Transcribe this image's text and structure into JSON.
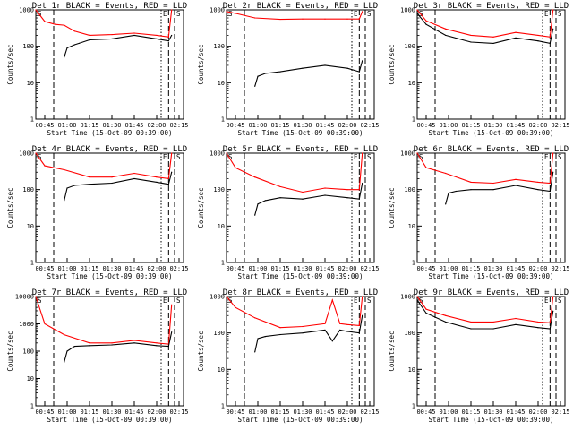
{
  "legend_text": "BLACK = Events, RED = LLD",
  "xlabel": "Start Time (15-Oct-09 00:39:00)",
  "ylabel": "Counts/sec",
  "x_ticks": [
    "00:45",
    "01:00",
    "01:15",
    "01:30",
    "01:45",
    "02:00",
    "02:15"
  ],
  "markers": {
    "S": "S",
    "E": "E"
  },
  "colors": {
    "events": "#000000",
    "lld": "#ff0000"
  },
  "chart_data": [
    {
      "type": "line",
      "title": "Det 1r BLACK = Events, RED = LLD",
      "ylim": [
        1,
        1000
      ],
      "y_ticks": [
        "1",
        "10",
        "100",
        "1000"
      ],
      "yscale": "log",
      "xlabel": "Start Time (15-Oct-09 00:39:00)",
      "ylabel": "Counts/sec",
      "series": [
        {
          "name": "RED = LLD",
          "color": "#ff0000",
          "x": [
            "00:39",
            "00:45",
            "00:52",
            "00:58",
            "01:05",
            "01:15",
            "01:30",
            "01:45",
            "02:00",
            "02:08",
            "02:10"
          ],
          "values": [
            1000,
            480,
            400,
            380,
            260,
            200,
            210,
            230,
            200,
            180,
            1000
          ]
        },
        {
          "name": "BLACK = Events",
          "color": "#000000",
          "x": [
            "00:58",
            "01:00",
            "01:05",
            "01:08",
            "01:15",
            "01:30",
            "01:45",
            "02:00",
            "02:08",
            "02:10"
          ],
          "values": [
            50,
            90,
            110,
            120,
            150,
            160,
            200,
            160,
            140,
            200
          ]
        }
      ]
    },
    {
      "type": "line",
      "title": "Det 2r BLACK = Events, RED = LLD",
      "ylim": [
        1,
        1000
      ],
      "y_ticks": [
        "1",
        "10",
        "100",
        "1000"
      ],
      "yscale": "log",
      "xlabel": "Start Time (15-Oct-09 00:39:00)",
      "ylabel": "Counts/sec",
      "series": [
        {
          "name": "RED = LLD",
          "color": "#ff0000",
          "x": [
            "00:39",
            "00:45",
            "00:58",
            "01:15",
            "01:30",
            "01:45",
            "02:00",
            "02:08",
            "02:10"
          ],
          "values": [
            900,
            800,
            600,
            550,
            560,
            560,
            560,
            560,
            900
          ]
        },
        {
          "name": "BLACK = Events",
          "color": "#000000",
          "x": [
            "00:58",
            "01:00",
            "01:05",
            "01:15",
            "01:30",
            "01:45",
            "02:00",
            "02:08",
            "02:10"
          ],
          "values": [
            8,
            15,
            18,
            20,
            25,
            30,
            25,
            20,
            40
          ]
        }
      ]
    },
    {
      "type": "line",
      "title": "Det 3r BLACK = Events, RED = LLD",
      "ylim": [
        1,
        1000
      ],
      "y_ticks": [
        "1",
        "10",
        "100",
        "1000"
      ],
      "yscale": "log",
      "xlabel": "Start Time (15-Oct-09 00:39:00)",
      "ylabel": "Counts/sec",
      "series": [
        {
          "name": "RED = LLD",
          "color": "#ff0000",
          "x": [
            "00:39",
            "00:45",
            "00:58",
            "01:15",
            "01:30",
            "01:45",
            "02:00",
            "02:08",
            "02:10"
          ],
          "values": [
            1000,
            500,
            300,
            200,
            180,
            240,
            200,
            180,
            1000
          ]
        },
        {
          "name": "BLACK = Events",
          "color": "#000000",
          "x": [
            "00:39",
            "00:45",
            "00:58",
            "01:15",
            "01:30",
            "01:45",
            "02:00",
            "02:08",
            "02:10"
          ],
          "values": [
            800,
            400,
            200,
            130,
            120,
            170,
            140,
            120,
            300
          ]
        }
      ]
    },
    {
      "type": "line",
      "title": "Det 4r BLACK = Events, RED = LLD",
      "ylim": [
        1,
        1000
      ],
      "y_ticks": [
        "1",
        "10",
        "100",
        "1000"
      ],
      "yscale": "log",
      "xlabel": "Start Time (15-Oct-09 00:39:00)",
      "ylabel": "Counts/sec",
      "series": [
        {
          "name": "RED = LLD",
          "color": "#ff0000",
          "x": [
            "00:39",
            "00:45",
            "00:58",
            "01:15",
            "01:30",
            "01:45",
            "02:00",
            "02:08",
            "02:10"
          ],
          "values": [
            1000,
            450,
            350,
            220,
            220,
            280,
            220,
            200,
            1000
          ]
        },
        {
          "name": "BLACK = Events",
          "color": "#000000",
          "x": [
            "00:58",
            "01:00",
            "01:05",
            "01:15",
            "01:30",
            "01:45",
            "02:00",
            "02:08",
            "02:10"
          ],
          "values": [
            50,
            110,
            130,
            140,
            150,
            200,
            160,
            140,
            300
          ]
        }
      ]
    },
    {
      "type": "line",
      "title": "Det 5r BLACK = Events, RED = LLD",
      "ylim": [
        1,
        1000
      ],
      "y_ticks": [
        "1",
        "10",
        "100",
        "1000"
      ],
      "yscale": "log",
      "xlabel": "Start Time (15-Oct-09 00:39:00)",
      "ylabel": "Counts/sec",
      "series": [
        {
          "name": "RED = LLD",
          "color": "#ff0000",
          "x": [
            "00:39",
            "00:45",
            "00:58",
            "01:15",
            "01:30",
            "01:45",
            "02:00",
            "02:08",
            "02:10"
          ],
          "values": [
            1000,
            400,
            220,
            120,
            85,
            110,
            100,
            100,
            1000
          ]
        },
        {
          "name": "BLACK = Events",
          "color": "#000000",
          "x": [
            "00:58",
            "01:00",
            "01:05",
            "01:15",
            "01:30",
            "01:45",
            "02:00",
            "02:08",
            "02:10"
          ],
          "values": [
            20,
            40,
            50,
            60,
            55,
            70,
            60,
            55,
            150
          ]
        }
      ]
    },
    {
      "type": "line",
      "title": "Det 6r BLACK = Events, RED = LLD",
      "ylim": [
        1,
        1000
      ],
      "y_ticks": [
        "1",
        "10",
        "100",
        "1000"
      ],
      "yscale": "log",
      "xlabel": "Start Time (15-Oct-09 00:39:00)",
      "ylabel": "Counts/sec",
      "series": [
        {
          "name": "RED = LLD",
          "color": "#ff0000",
          "x": [
            "00:39",
            "00:45",
            "00:58",
            "01:15",
            "01:30",
            "01:45",
            "02:00",
            "02:08",
            "02:10"
          ],
          "values": [
            1000,
            400,
            280,
            160,
            150,
            190,
            160,
            150,
            1000
          ]
        },
        {
          "name": "BLACK = Events",
          "color": "#000000",
          "x": [
            "00:58",
            "01:00",
            "01:05",
            "01:15",
            "01:30",
            "01:45",
            "02:00",
            "02:08",
            "02:10"
          ],
          "values": [
            40,
            80,
            90,
            100,
            100,
            130,
            100,
            90,
            300
          ]
        }
      ]
    },
    {
      "type": "line",
      "title": "Det 7r BLACK = Events, RED = LLD",
      "ylim": [
        1,
        10000
      ],
      "y_ticks": [
        "1",
        "10",
        "100",
        "1000",
        "10000"
      ],
      "yscale": "log",
      "xlabel": "Start Time (15-Oct-09 00:39:00)",
      "ylabel": "Counts/sec",
      "series": [
        {
          "name": "RED = LLD",
          "color": "#ff0000",
          "x": [
            "00:39",
            "00:45",
            "00:58",
            "01:15",
            "01:30",
            "01:45",
            "02:00",
            "02:08",
            "02:10"
          ],
          "values": [
            10000,
            1000,
            400,
            200,
            200,
            250,
            200,
            180,
            5000
          ]
        },
        {
          "name": "BLACK = Events",
          "color": "#000000",
          "x": [
            "00:58",
            "01:00",
            "01:05",
            "01:15",
            "01:30",
            "01:45",
            "02:00",
            "02:08",
            "02:10"
          ],
          "values": [
            40,
            100,
            150,
            160,
            170,
            200,
            160,
            150,
            500
          ]
        }
      ]
    },
    {
      "type": "line",
      "title": "Det 8r BLACK = Events, RED = LLD",
      "ylim": [
        1,
        1000
      ],
      "y_ticks": [
        "1",
        "10",
        "100",
        "1000"
      ],
      "yscale": "log",
      "xlabel": "Start Time (15-Oct-09 00:39:00)",
      "ylabel": "Counts/sec",
      "series": [
        {
          "name": "RED = LLD",
          "color": "#ff0000",
          "x": [
            "00:39",
            "00:45",
            "00:58",
            "01:15",
            "01:30",
            "01:45",
            "01:50",
            "01:55",
            "02:00",
            "02:08",
            "02:10"
          ],
          "values": [
            1000,
            500,
            260,
            140,
            150,
            180,
            800,
            180,
            170,
            160,
            1000
          ]
        },
        {
          "name": "BLACK = Events",
          "color": "#000000",
          "x": [
            "00:58",
            "01:00",
            "01:05",
            "01:15",
            "01:30",
            "01:45",
            "01:50",
            "01:55",
            "02:00",
            "02:08",
            "02:10"
          ],
          "values": [
            30,
            70,
            80,
            90,
            100,
            120,
            60,
            120,
            110,
            100,
            300
          ]
        }
      ]
    },
    {
      "type": "line",
      "title": "Det 9r BLACK = Events, RED = LLD",
      "ylim": [
        1,
        1000
      ],
      "y_ticks": [
        "1",
        "10",
        "100",
        "1000"
      ],
      "yscale": "log",
      "xlabel": "Start Time (15-Oct-09 00:39:00)",
      "ylabel": "Counts/sec",
      "series": [
        {
          "name": "RED = LLD",
          "color": "#ff0000",
          "x": [
            "00:39",
            "00:45",
            "00:58",
            "01:15",
            "01:30",
            "01:45",
            "02:00",
            "02:08",
            "02:10"
          ],
          "values": [
            1000,
            450,
            300,
            200,
            200,
            250,
            200,
            190,
            1000
          ]
        },
        {
          "name": "BLACK = Events",
          "color": "#000000",
          "x": [
            "00:39",
            "00:45",
            "00:58",
            "01:15",
            "01:30",
            "01:45",
            "02:00",
            "02:08",
            "02:10"
          ],
          "values": [
            800,
            350,
            200,
            130,
            130,
            170,
            140,
            130,
            400
          ]
        }
      ]
    }
  ]
}
